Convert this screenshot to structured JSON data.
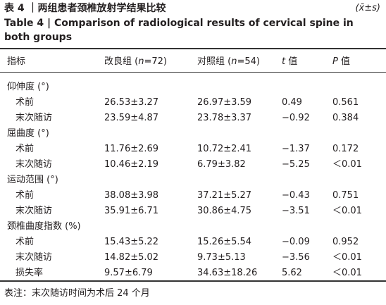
{
  "header": {
    "title": "表 4 ｜两组患者颈椎放射学结果比较",
    "stat": "(x̄±s)",
    "title_en": "Table 4 | Comparison of radiological results of cervical spine in both groups"
  },
  "table": {
    "columns": [
      {
        "text": "指标"
      },
      {
        "pre": "改良组 (",
        "var": "n",
        "post": "=72)"
      },
      {
        "pre": "对照组 (",
        "var": "n",
        "post": "=54)"
      },
      {
        "var": "t",
        "post": " 值"
      },
      {
        "var": "P",
        "post": " 值"
      }
    ],
    "groups": [
      {
        "name": "仰伸度 (°)",
        "rows": [
          [
            "术前",
            "26.53±3.27",
            "26.97±3.59",
            "0.49",
            "0.561"
          ],
          [
            "末次随访",
            "23.59±4.87",
            "23.78±3.37",
            "−0.92",
            "0.384"
          ]
        ]
      },
      {
        "name": "屈曲度 (°)",
        "rows": [
          [
            "术前",
            "11.76±2.69",
            "10.72±2.41",
            "−1.37",
            "0.172"
          ],
          [
            "末次随访",
            "10.46±2.19",
            "6.79±3.82",
            "−5.25",
            "＜0.01"
          ]
        ]
      },
      {
        "name": "运动范围 (°)",
        "rows": [
          [
            "术前",
            "38.08±3.98",
            "37.21±5.27",
            "−0.43",
            "0.751"
          ],
          [
            "末次随访",
            "35.91±6.71",
            "30.86±4.75",
            "−3.51",
            "＜0.01"
          ]
        ]
      },
      {
        "name": "颈椎曲度指数 (%)",
        "rows": [
          [
            "术前",
            "15.43±5.22",
            "15.26±5.54",
            "−0.09",
            "0.952"
          ],
          [
            "末次随访",
            "14.82±5.02",
            "9.73±5.13",
            "−3.56",
            "＜0.01"
          ],
          [
            "损失率",
            "9.57±6.79",
            "34.63±18.26",
            "5.62",
            "＜0.01"
          ]
        ]
      }
    ]
  },
  "footnote": "表注：末次随访时间为术后 24 个月"
}
